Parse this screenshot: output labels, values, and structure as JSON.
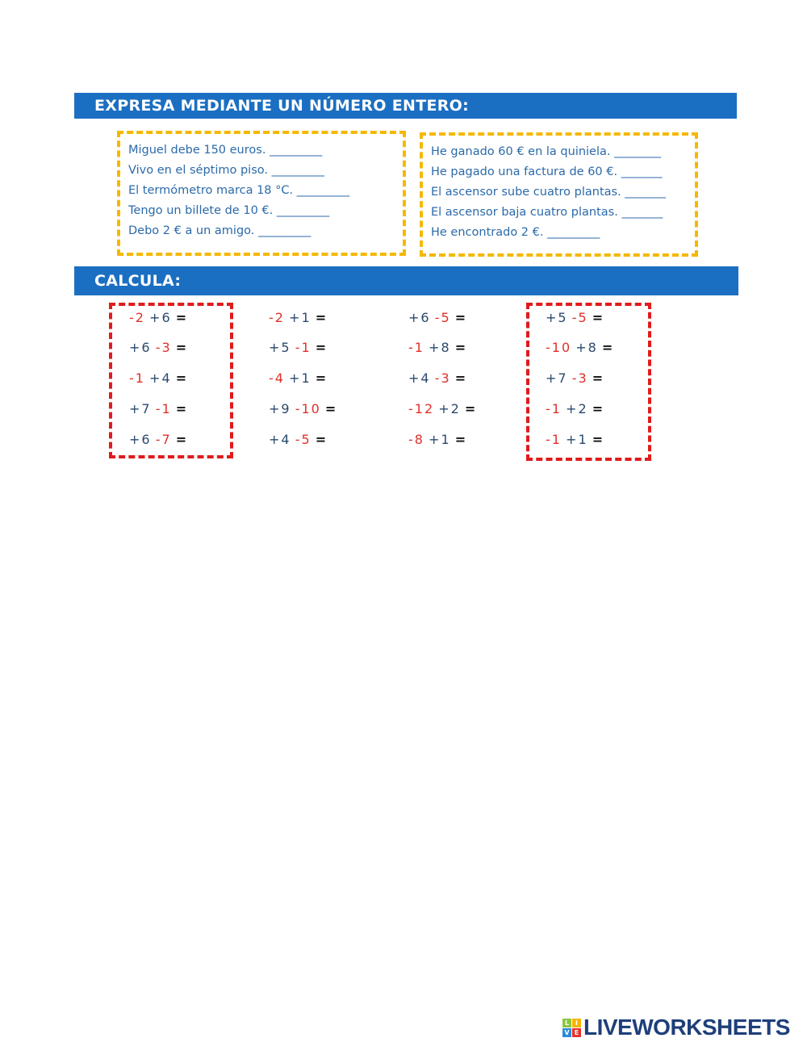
{
  "section1": {
    "title": "EXPRESA MEDIANTE UN NÚMERO ENTERO:",
    "left": [
      "Miguel debe 150 euros. _________",
      "Vivo en el séptimo piso. _________",
      "El termómetro marca 18 °C. _________",
      "Tengo un billete de 10 €. _________",
      "Debo 2 € a un amigo. _________"
    ],
    "right": [
      "He ganado 60 € en la quiniela. ________",
      "He pagado una factura de 60 €. _______",
      "El ascensor sube cuatro plantas. _______",
      "El ascensor baja cuatro plantas. _______",
      "He encontrado 2 €. _________"
    ]
  },
  "section2": {
    "title": "CALCULA:",
    "columns": [
      [
        [
          "-2",
          "+6"
        ],
        [
          "+6",
          "-3"
        ],
        [
          "-1",
          "+4"
        ],
        [
          "+7",
          "-1"
        ],
        [
          "+6",
          "-7"
        ]
      ],
      [
        [
          "-2",
          "+1"
        ],
        [
          "+5",
          "-1"
        ],
        [
          "-4",
          "+1"
        ],
        [
          "+9",
          "-10"
        ],
        [
          "+4",
          "-5"
        ]
      ],
      [
        [
          "+6",
          "-5"
        ],
        [
          "-1",
          "+8"
        ],
        [
          "+4",
          "-3"
        ],
        [
          "-12",
          "+2"
        ],
        [
          "-8",
          "+1"
        ]
      ],
      [
        [
          "+5",
          "-5"
        ],
        [
          "-10",
          "+8"
        ],
        [
          "+7",
          "-3"
        ],
        [
          "-1",
          "+2"
        ],
        [
          "-1",
          "+1"
        ]
      ]
    ],
    "equals": "="
  },
  "colors": {
    "header": "#1b6fc2",
    "positive": "#2a4a6e",
    "negative": "#e0302a",
    "yellow_border": "#f5b800",
    "red_border": "#e01b1b"
  },
  "logo": {
    "text": "LIVEWORKSHEETS",
    "cube": [
      "L",
      "I",
      "V",
      "E"
    ]
  }
}
